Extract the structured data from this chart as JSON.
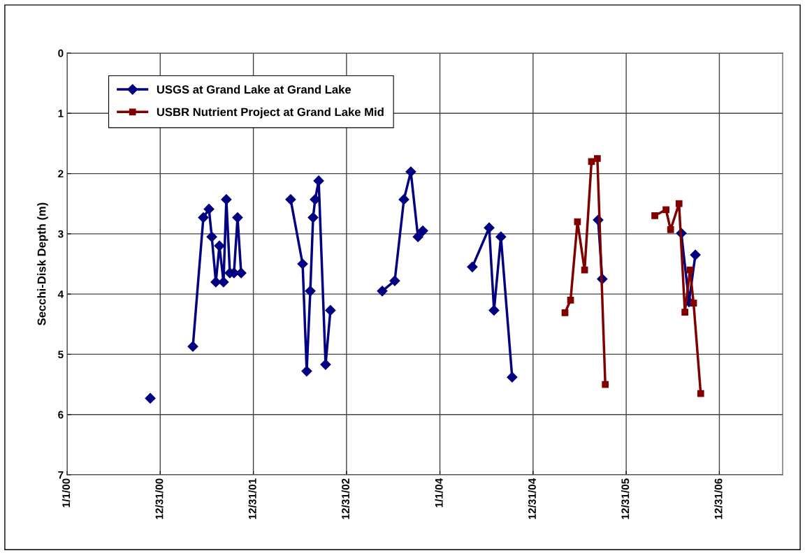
{
  "chart_data": {
    "type": "line",
    "ylabel": "Secchi-Disk Depth (m)",
    "ylim": [
      7,
      0
    ],
    "yticks": [
      0,
      1,
      2,
      3,
      4,
      5,
      6,
      7
    ],
    "xlim": [
      "2000-01-01",
      "2007-09-05"
    ],
    "xticks": [
      {
        "value": "2000-01-01",
        "label": "1/1/00"
      },
      {
        "value": "2000-12-31",
        "label": "12/31/00"
      },
      {
        "value": "2001-12-31",
        "label": "12/31/01"
      },
      {
        "value": "2002-12-31",
        "label": "12/31/02"
      },
      {
        "value": "2004-01-01",
        "label": "1/1/04"
      },
      {
        "value": "2004-12-31",
        "label": "12/31/04"
      },
      {
        "value": "2005-12-31",
        "label": "12/31/05"
      },
      {
        "value": "2006-12-31",
        "label": "12/31/06"
      }
    ],
    "grid": true,
    "legend": "top left",
    "line_style": "solid",
    "series": [
      {
        "name": "USGS at Grand Lake at Grand Lake",
        "color": "#000080",
        "marker": "diamond",
        "x": [
          "2000-11-22",
          "2001-02-01",
          "2001-05-08",
          "2001-06-18",
          "2001-07-10",
          "2001-07-21",
          "2001-08-06",
          "2001-08-20",
          "2001-09-05",
          "2001-09-16",
          "2001-09-30",
          "2001-10-16",
          "2001-10-30",
          "2001-11-13",
          "2002-02-01",
          "2002-05-26",
          "2002-07-12",
          "2002-07-28",
          "2002-08-11",
          "2002-08-22",
          "2002-08-30",
          "2002-09-13",
          "2002-10-10",
          "2002-10-29",
          "2003-02-01",
          "2003-05-20",
          "2003-07-08",
          "2003-08-13",
          "2003-09-09",
          "2003-10-07",
          "2003-10-26",
          "2004-02-01",
          "2004-05-07",
          "2004-07-12",
          "2004-07-31",
          "2004-08-27",
          "2004-10-10",
          "2005-02-01",
          "2005-09-12",
          "2005-09-28",
          "2006-02-01",
          "2006-08-04",
          "2006-09-03",
          "2006-09-28"
        ],
        "values": [
          5.73,
          null,
          4.87,
          2.73,
          2.59,
          3.05,
          3.8,
          3.2,
          3.8,
          2.43,
          3.65,
          3.65,
          2.73,
          3.65,
          null,
          2.43,
          3.5,
          5.28,
          3.95,
          2.73,
          2.43,
          2.12,
          5.17,
          4.27,
          null,
          3.95,
          3.78,
          2.43,
          1.97,
          3.05,
          2.95,
          null,
          3.55,
          2.9,
          4.27,
          3.05,
          5.38,
          null,
          2.77,
          3.75,
          null,
          2.99,
          4.13,
          3.35
        ]
      },
      {
        "name": "USBR Nutrient Project at Grand Lake Mid",
        "color": "#800000",
        "marker": "square",
        "x": [
          "2005-05-05",
          "2005-05-27",
          "2005-06-23",
          "2005-07-21",
          "2005-08-17",
          "2005-09-09",
          "2005-10-10",
          "2006-02-01",
          "2006-04-22",
          "2006-06-05",
          "2006-06-23",
          "2006-07-26",
          "2006-08-18",
          "2006-09-07",
          "2006-09-21",
          "2006-10-19"
        ],
        "values": [
          4.31,
          4.1,
          2.8,
          3.6,
          1.8,
          1.75,
          5.5,
          null,
          2.7,
          2.6,
          2.93,
          2.5,
          4.3,
          3.6,
          4.15,
          5.65
        ]
      }
    ]
  }
}
